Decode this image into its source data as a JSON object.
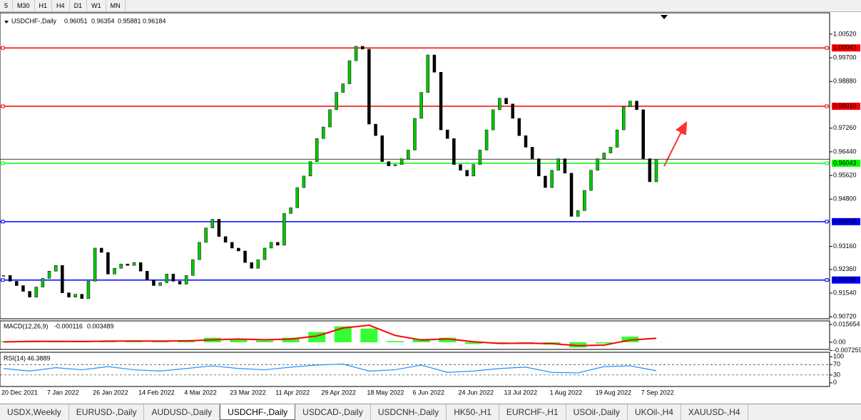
{
  "toolbar": [
    "5",
    "M30",
    "H1",
    "H4",
    "D1",
    "W1",
    "MN"
  ],
  "tabs": [
    "USDX,Weekly",
    "EURUSD-,Daily",
    "AUDUSD-,Daily",
    "USDCHF-,Daily",
    "USDCAD-,Daily",
    "USDCNH-,Daily",
    "HK50-,H1",
    "EURCHF-,H1",
    "USOil-,Daily",
    "UKOil-,H4",
    "XAUUSD-,H4"
  ],
  "active_tab": 3,
  "chart_data": {
    "type": "candlestick",
    "symbol": "USDCHF-,Daily",
    "ohlc": [
      0.96051,
      0.96354,
      0.95881,
      0.96184
    ],
    "x": [
      "20 Dec 2021",
      null,
      null,
      null,
      null,
      null,
      null,
      "7 Jan 2022",
      null,
      null,
      null,
      null,
      null,
      null,
      "26 Jan 2022",
      null,
      null,
      null,
      null,
      null,
      null,
      "14 Feb 2022",
      null,
      null,
      null,
      null,
      null,
      null,
      "4 Mar 2022",
      null,
      null,
      null,
      null,
      null,
      null,
      "23 Mar 2022",
      null,
      null,
      null,
      null,
      null,
      null,
      "11 Apr 2022",
      null,
      null,
      null,
      null,
      null,
      null,
      "29 Apr 2022",
      null,
      null,
      null,
      null,
      null,
      null,
      "18 May 2022",
      null,
      null,
      null,
      null,
      null,
      null,
      "6 Jun 2022",
      null,
      null,
      null,
      null,
      null,
      null,
      "24 Jun 2022",
      null,
      null,
      null,
      null,
      null,
      null,
      "13 Jul 2022",
      null,
      null,
      null,
      null,
      null,
      null,
      "1 Aug 2022",
      null,
      null,
      null,
      null,
      null,
      null,
      "19 Aug 2022",
      null,
      null,
      null,
      null,
      null,
      null,
      "7 Sep 2022",
      null,
      null
    ],
    "closes": [
      0.9215,
      0.9195,
      0.918,
      0.916,
      0.914,
      0.9175,
      0.9205,
      0.923,
      0.925,
      0.9155,
      0.914,
      0.915,
      0.9135,
      0.9195,
      0.931,
      0.9295,
      0.922,
      0.924,
      0.9255,
      0.925,
      0.926,
      0.923,
      0.92,
      0.918,
      0.919,
      0.922,
      0.9195,
      0.9185,
      0.9215,
      0.927,
      0.933,
      0.938,
      0.941,
      0.935,
      0.933,
      0.931,
      0.93,
      0.926,
      0.924,
      0.927,
      0.931,
      0.933,
      0.932,
      0.943,
      0.945,
      0.952,
      0.956,
      0.961,
      0.969,
      0.973,
      0.979,
      0.985,
      0.988,
      0.996,
      1.001,
      1.0,
      0.974,
      0.97,
      0.961,
      0.9595,
      0.96,
      0.962,
      0.965,
      0.976,
      0.985,
      0.998,
      0.992,
      0.972,
      0.969,
      0.96,
      0.958,
      0.956,
      0.96,
      0.965,
      0.972,
      0.979,
      0.983,
      0.981,
      0.976,
      0.97,
      0.966,
      0.962,
      0.956,
      0.952,
      0.958,
      0.962,
      0.957,
      0.942,
      0.944,
      0.951,
      0.958,
      0.962,
      0.964,
      0.966,
      0.972,
      0.98,
      0.982,
      0.979,
      0.962,
      0.954,
      0.96184
    ],
    "up_color": "#00c800",
    "down_color": "#000000",
    "ylim": [
      0.9065,
      1.0126
    ],
    "yticks": [
      {
        "value": 1.0052,
        "label": "1.00520"
      },
      {
        "value": 0.997,
        "label": "0.99700"
      },
      {
        "value": 0.9888,
        "label": "0.98880"
      },
      {
        "value": 0.9726,
        "label": "0.97260"
      },
      {
        "value": 0.9644,
        "label": "0.96440"
      },
      {
        "value": 0.9562,
        "label": "0.95620"
      },
      {
        "value": 0.948,
        "label": "0.94800"
      },
      {
        "value": 0.9316,
        "label": "0.93160"
      },
      {
        "value": 0.9236,
        "label": "0.92360"
      },
      {
        "value": 0.9154,
        "label": "0.91540"
      },
      {
        "value": 0.9072,
        "label": "0.90720"
      }
    ],
    "levels": [
      {
        "value": 1.00043,
        "color": "#ff0000"
      },
      {
        "value": 0.98019,
        "color": "#ff0000"
      },
      {
        "value": 0.96043,
        "color": "#00ff00"
      },
      {
        "value": 0.94018,
        "color": "#0000ff"
      },
      {
        "value": 0.91993,
        "color": "#0000ff"
      }
    ],
    "macd": {
      "title": "MACD(12,26,9)",
      "main": -0.000116,
      "signal": 0.003489,
      "hist": [
        0.001,
        0.0012,
        0.0005,
        0.0008,
        0.0015,
        0.001,
        0.0008,
        0.002,
        0.004,
        0.003,
        0.0015,
        0.004,
        0.009,
        0.014,
        0.012,
        0.001,
        0.003,
        0.004,
        -0.0015,
        -0.001,
        -0.0005,
        -0.002,
        -0.0045,
        -0.001,
        0.005,
        -0.0001
      ],
      "signal_line": [
        0.0003,
        0.0008,
        0.0008,
        0.0007,
        0.001,
        0.0011,
        0.001,
        0.0012,
        0.0022,
        0.0028,
        0.0022,
        0.0028,
        0.0055,
        0.0125,
        0.015,
        0.006,
        0.002,
        0.003,
        0.0005,
        -0.001,
        -0.0008,
        -0.0012,
        -0.003,
        -0.0025,
        0.002,
        0.0035
      ],
      "hist_color": "#00ff00",
      "signal_color": "#ff0000",
      "ylim": [
        -0.00626,
        0.01879
      ],
      "yticks": [
        0.015654,
        {
          "value": 0,
          "label": "0.00"
        },
        -0.007259
      ]
    },
    "rsi": {
      "title": "RSI(14)",
      "last": 46.3889,
      "values": [
        55,
        45,
        58,
        50,
        62,
        50,
        45,
        55,
        65,
        55,
        50,
        60,
        68,
        72,
        45,
        50,
        68,
        40,
        45,
        55,
        60,
        40,
        38,
        62,
        65,
        46.3889
      ],
      "color": "#1e90ff",
      "ylim": [
        -14,
        117
      ],
      "yticks": [
        100,
        70,
        30,
        0
      ],
      "levels": [
        70,
        30
      ]
    }
  }
}
